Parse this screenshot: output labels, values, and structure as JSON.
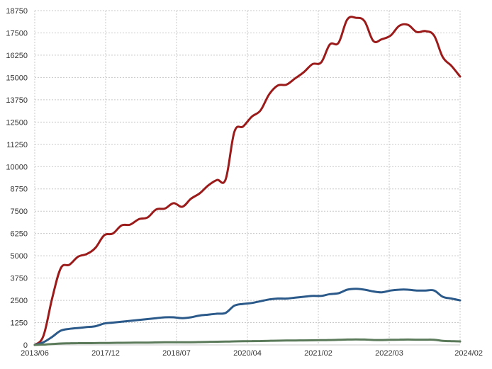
{
  "chart_data": {
    "type": "line",
    "title": "",
    "xlabel": "",
    "ylabel": "",
    "x_ticks": [
      "2013/06",
      "2017/12",
      "2018/07",
      "2020/04",
      "2021/02",
      "2022/03",
      "2024/02"
    ],
    "y_ticks": [
      "0",
      "1250",
      "2500",
      "3750",
      "5000",
      "6250",
      "7500",
      "8750",
      "10000",
      "11250",
      "12500",
      "13750",
      "15000",
      "16250",
      "17500",
      "18750"
    ],
    "ylim": [
      0,
      18750
    ],
    "grid": true,
    "legend": "none",
    "series": [
      {
        "color": "#9b1b1b",
        "values": [
          0,
          500,
          2600,
          4300,
          4500,
          4950,
          5100,
          5450,
          6150,
          6250,
          6700,
          6750,
          7050,
          7150,
          7600,
          7650,
          7950,
          7750,
          8200,
          8500,
          8950,
          9250,
          9300,
          11950,
          12250,
          12800,
          13150,
          14050,
          14550,
          14600,
          14950,
          15300,
          15750,
          15850,
          16850,
          16950,
          18250,
          18350,
          18150,
          17050,
          17150,
          17350,
          17900,
          17950,
          17550,
          17600,
          17350,
          16150,
          15650,
          15050
        ]
      },
      {
        "color": "#2b5a8a",
        "values": [
          0,
          150,
          450,
          800,
          900,
          950,
          1000,
          1050,
          1200,
          1250,
          1300,
          1350,
          1400,
          1450,
          1500,
          1550,
          1550,
          1500,
          1550,
          1650,
          1700,
          1750,
          1800,
          2200,
          2300,
          2350,
          2450,
          2550,
          2600,
          2600,
          2650,
          2700,
          2750,
          2750,
          2850,
          2900,
          3100,
          3150,
          3100,
          3000,
          2950,
          3050,
          3100,
          3100,
          3050,
          3050,
          3050,
          2700,
          2600,
          2500
        ]
      },
      {
        "color": "#5a7a5a",
        "values": [
          0,
          20,
          50,
          80,
          90,
          100,
          100,
          105,
          110,
          115,
          120,
          125,
          130,
          130,
          140,
          150,
          150,
          145,
          150,
          160,
          170,
          180,
          185,
          200,
          210,
          215,
          220,
          230,
          240,
          245,
          250,
          255,
          260,
          265,
          275,
          285,
          300,
          305,
          300,
          280,
          275,
          285,
          295,
          300,
          295,
          295,
          290,
          230,
          210,
          200
        ]
      }
    ]
  }
}
